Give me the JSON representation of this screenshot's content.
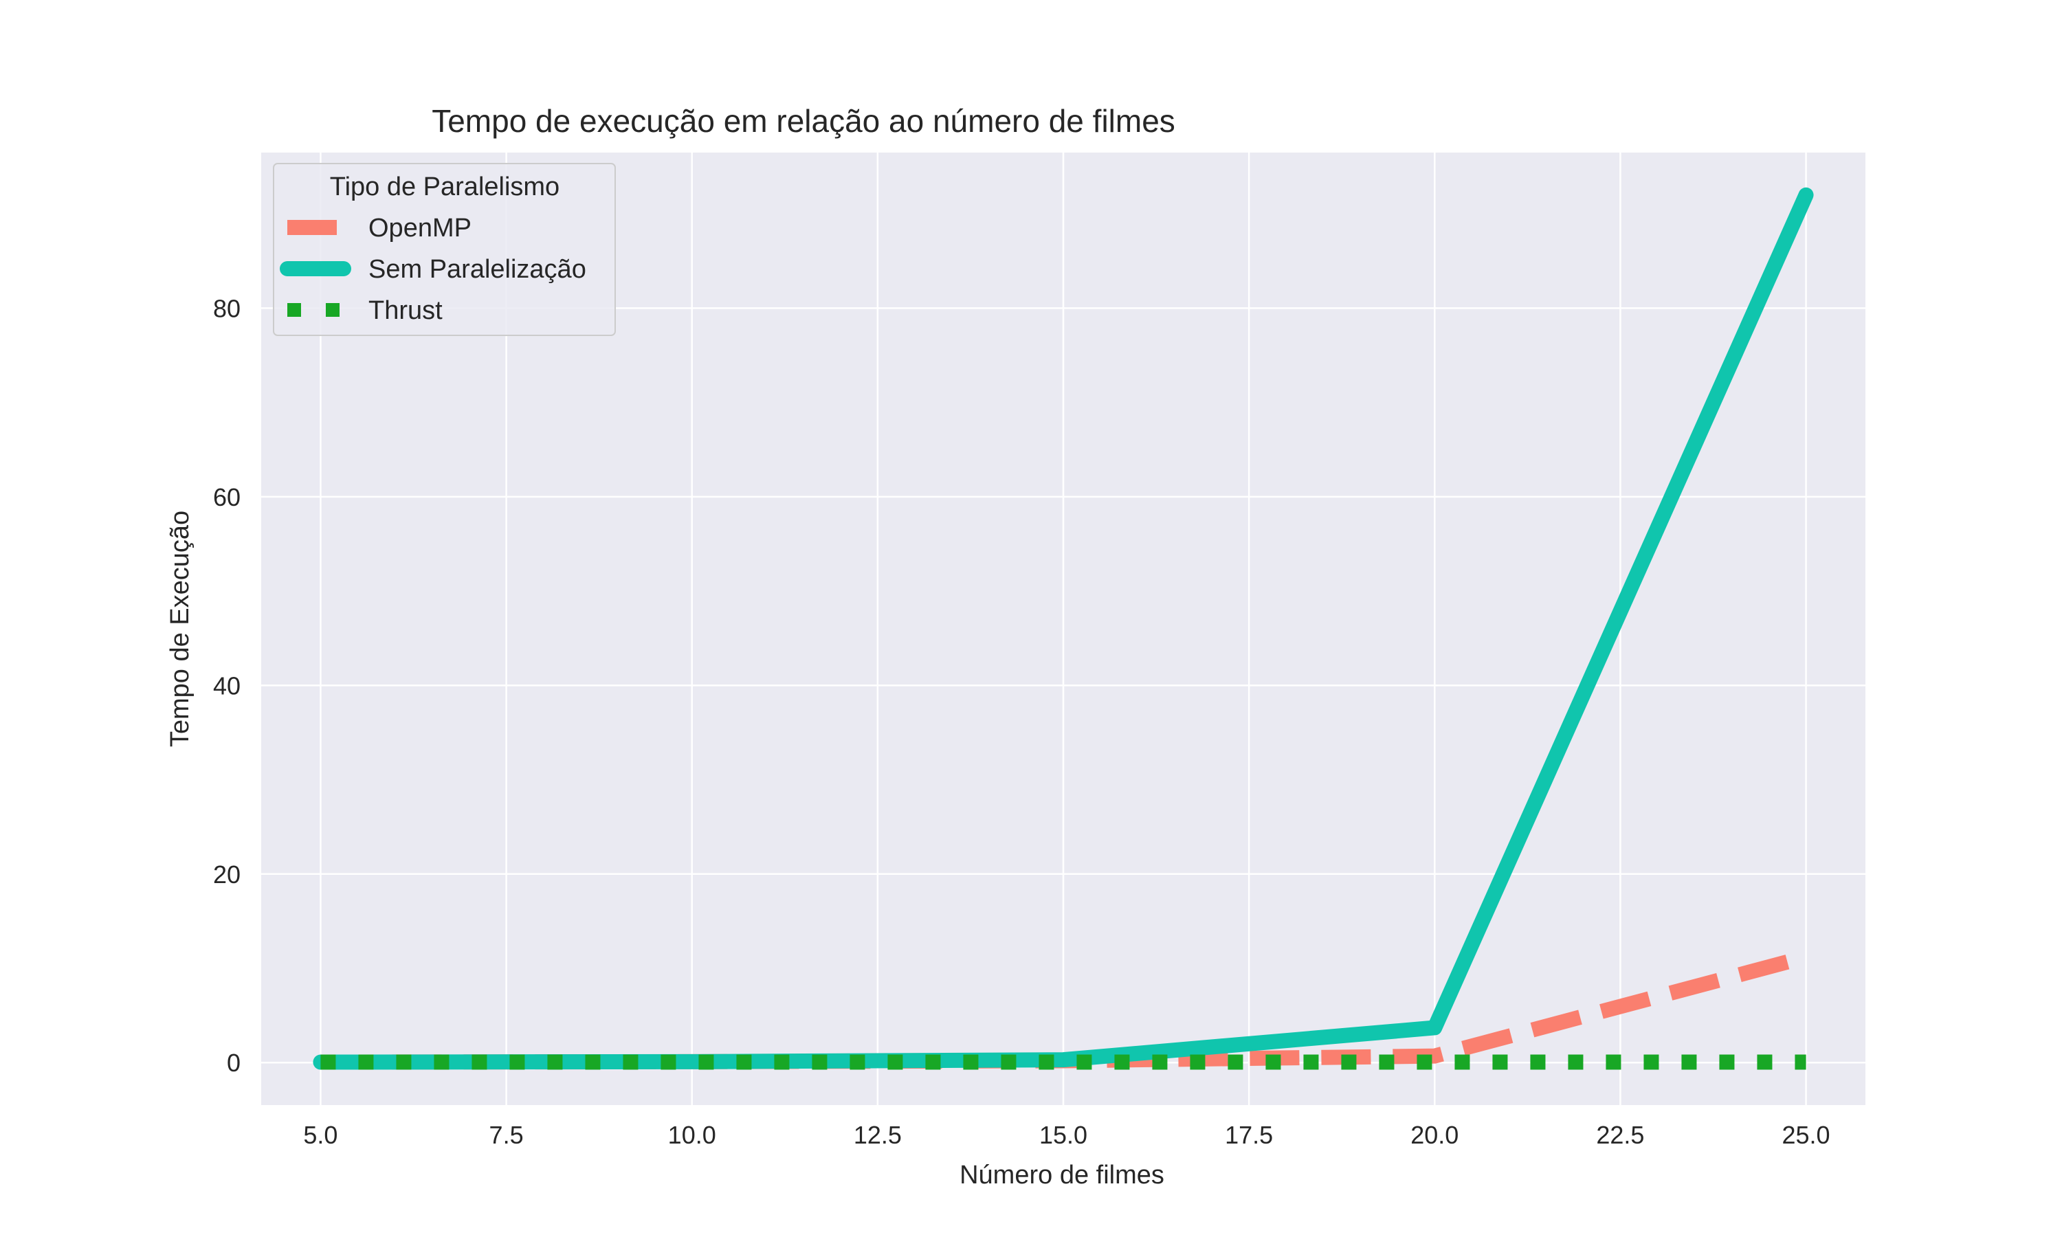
{
  "chart_data": {
    "type": "line",
    "title": "Tempo de execução em relação ao número de filmes",
    "xlabel": "Número de filmes",
    "ylabel": "Tempo de Execução",
    "xlim": [
      4.2,
      25.8
    ],
    "ylim": [
      -4.5,
      96.5
    ],
    "xticks": [
      5.0,
      7.5,
      10.0,
      12.5,
      15.0,
      17.5,
      20.0,
      22.5,
      25.0
    ],
    "xtick_labels": [
      "5.0",
      "7.5",
      "10.0",
      "12.5",
      "15.0",
      "17.5",
      "20.0",
      "22.5",
      "25.0"
    ],
    "yticks": [
      0,
      20,
      40,
      60,
      80
    ],
    "ytick_labels": [
      "0",
      "20",
      "40",
      "60",
      "80"
    ],
    "grid": true,
    "legend": {
      "title": "Tipo de Paralelismo",
      "placement": "top-left"
    },
    "x": [
      5,
      10,
      15,
      20,
      25
    ],
    "series": [
      {
        "name": "OpenMP",
        "values": [
          0.05,
          0.1,
          0.2,
          0.7,
          11.2
        ],
        "color": "#fa7f6f",
        "style": "dashed"
      },
      {
        "name": "Sem Paralelização",
        "values": [
          0.05,
          0.1,
          0.3,
          3.7,
          92.0
        ],
        "color": "#10c5ad",
        "style": "solid"
      },
      {
        "name": "Thrust",
        "values": [
          0.05,
          0.05,
          0.05,
          0.05,
          0.05
        ],
        "color": "#18a725",
        "style": "dotted"
      }
    ],
    "background": "#eaeaf2"
  }
}
